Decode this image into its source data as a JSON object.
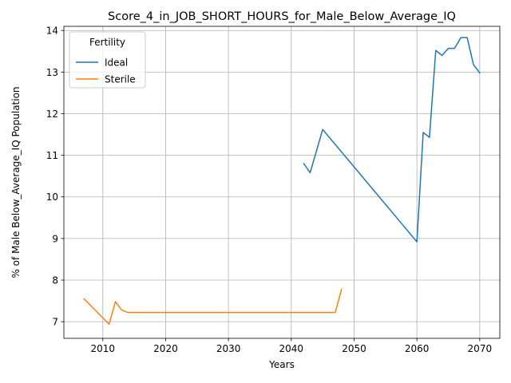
{
  "chart_data": {
    "type": "line",
    "title": "Score_4_in_JOB_SHORT_HOURS_for_Male_Below_Average_IQ",
    "xlabel": "Years",
    "ylabel": "% of Male Below_Average_IQ Population",
    "xlim": [
      2003.8,
      2073.2
    ],
    "ylim": [
      6.6,
      14.1
    ],
    "xticks": [
      2010,
      2020,
      2030,
      2040,
      2050,
      2060,
      2070
    ],
    "yticks": [
      7,
      8,
      9,
      10,
      11,
      12,
      13,
      14
    ],
    "grid": true,
    "legend": {
      "title": "Fertility",
      "placement": "top-left"
    },
    "series": [
      {
        "name": "Ideal",
        "color": "#1f77b4",
        "x": [
          2042,
          2043,
          2045,
          2060,
          2061,
          2062,
          2063,
          2064,
          2065,
          2066,
          2067,
          2068,
          2069,
          2070
        ],
        "y": [
          10.8,
          10.58,
          11.62,
          8.92,
          11.55,
          11.43,
          13.52,
          13.4,
          13.57,
          13.57,
          13.83,
          13.83,
          13.18,
          12.98
        ]
      },
      {
        "name": "Sterile",
        "color": "#ff7f0e",
        "x": [
          2007,
          2011,
          2012,
          2013,
          2014,
          2015,
          2020,
          2030,
          2040,
          2045,
          2046,
          2047,
          2048
        ],
        "y": [
          7.55,
          6.94,
          7.48,
          7.28,
          7.22,
          7.22,
          7.22,
          7.22,
          7.22,
          7.22,
          7.22,
          7.22,
          7.78
        ]
      }
    ]
  }
}
